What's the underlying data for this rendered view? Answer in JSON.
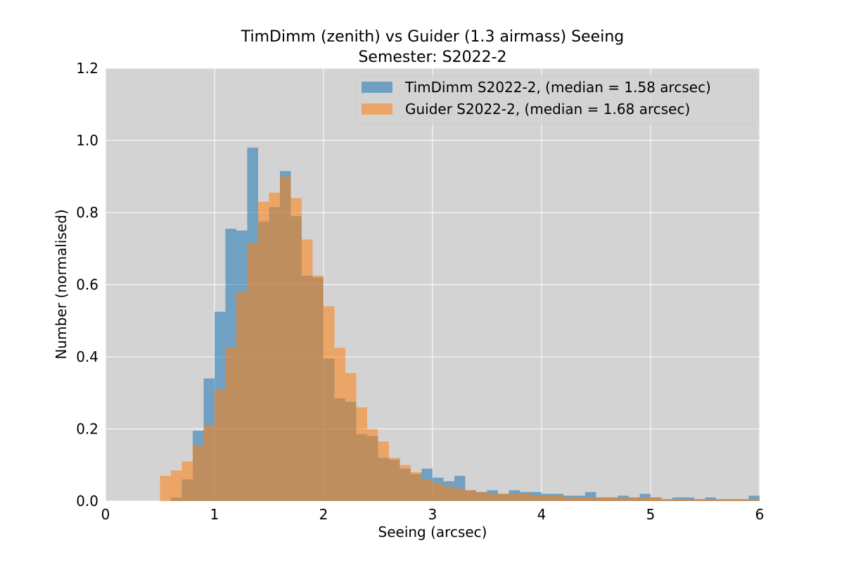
{
  "chart_data": {
    "type": "bar",
    "title": "TimDimm (zenith) vs Guider (1.3 airmass) Seeing",
    "subtitle": "Semester: S2022-2",
    "xlabel": "Seeing (arcsec)",
    "ylabel": "Number (normalised)",
    "xlim": [
      0,
      6
    ],
    "ylim": [
      0,
      1.2
    ],
    "xticks": [
      "0",
      "1",
      "2",
      "3",
      "4",
      "5",
      "6"
    ],
    "yticks": [
      "0.0",
      "0.2",
      "0.4",
      "0.6",
      "0.8",
      "1.0",
      "1.2"
    ],
    "grid": true,
    "legend_position": "top-right",
    "background": "#d3d3d3",
    "bin_width": 0.1,
    "bin_starts": [
      0.5,
      0.6,
      0.7,
      0.8,
      0.9,
      1.0,
      1.1,
      1.2,
      1.3,
      1.4,
      1.5,
      1.6,
      1.7,
      1.8,
      1.9,
      2.0,
      2.1,
      2.2,
      2.3,
      2.4,
      2.5,
      2.6,
      2.7,
      2.8,
      2.9,
      3.0,
      3.1,
      3.2,
      3.3,
      3.4,
      3.5,
      3.6,
      3.7,
      3.8,
      3.9,
      4.0,
      4.1,
      4.2,
      4.3,
      4.4,
      4.5,
      4.6,
      4.7,
      4.8,
      4.9,
      5.0,
      5.1,
      5.2,
      5.3,
      5.4,
      5.5,
      5.6,
      5.7,
      5.8,
      5.9
    ],
    "series": [
      {
        "name": "TimDimm S2022-2, (median = 1.58 arcsec)",
        "color": "#1f77b4",
        "values": [
          0.0,
          0.01,
          0.06,
          0.195,
          0.34,
          0.525,
          0.755,
          0.75,
          0.98,
          0.775,
          0.815,
          0.915,
          0.79,
          0.625,
          0.62,
          0.395,
          0.285,
          0.275,
          0.185,
          0.18,
          0.12,
          0.115,
          0.09,
          0.075,
          0.09,
          0.065,
          0.055,
          0.07,
          0.03,
          0.025,
          0.03,
          0.02,
          0.03,
          0.025,
          0.025,
          0.02,
          0.02,
          0.015,
          0.015,
          0.025,
          0.01,
          0.01,
          0.015,
          0.01,
          0.02,
          0.01,
          0.005,
          0.01,
          0.01,
          0.005,
          0.01,
          0.005,
          0.005,
          0.005,
          0.015
        ]
      },
      {
        "name": "Guider S2022-2, (median = 1.68 arcsec)",
        "color": "#ff7f0e",
        "values": [
          0.07,
          0.085,
          0.11,
          0.155,
          0.21,
          0.31,
          0.425,
          0.58,
          0.715,
          0.83,
          0.855,
          0.9,
          0.84,
          0.725,
          0.625,
          0.54,
          0.425,
          0.355,
          0.26,
          0.2,
          0.165,
          0.12,
          0.1,
          0.08,
          0.06,
          0.05,
          0.04,
          0.035,
          0.03,
          0.025,
          0.02,
          0.02,
          0.02,
          0.02,
          0.015,
          0.015,
          0.015,
          0.01,
          0.01,
          0.01,
          0.01,
          0.01,
          0.01,
          0.01,
          0.01,
          0.01,
          0.005,
          0.005,
          0.005,
          0.005,
          0.005,
          0.005,
          0.005,
          0.005,
          0.005
        ]
      }
    ]
  }
}
